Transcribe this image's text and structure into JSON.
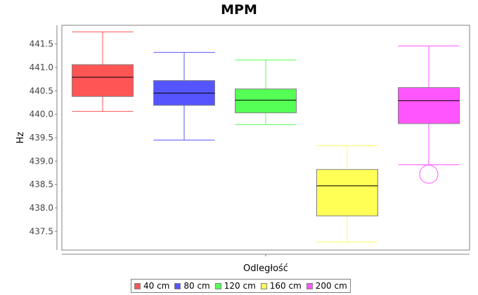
{
  "chart_data": {
    "type": "boxplot",
    "title": "MPM",
    "xlabel": "Odległość",
    "ylabel": "Hz",
    "ylim": [
      437.1,
      441.9
    ],
    "yticks": [
      "437.5",
      "438.0",
      "438.5",
      "439.0",
      "439.5",
      "440.0",
      "440.5",
      "441.0",
      "441.5"
    ],
    "grid": false,
    "legend_position": "bottom",
    "series": [
      {
        "name": "40 cm",
        "color": "#ff5555",
        "whisker_low": 440.06,
        "q1": 440.38,
        "median": 440.79,
        "q3": 441.06,
        "whisker_high": 441.76,
        "outliers": []
      },
      {
        "name": "80 cm",
        "color": "#5555ff",
        "whisker_low": 439.45,
        "q1": 440.19,
        "median": 440.45,
        "q3": 440.72,
        "whisker_high": 441.32,
        "outliers": []
      },
      {
        "name": "120 cm",
        "color": "#55ff55",
        "whisker_low": 439.78,
        "q1": 440.03,
        "median": 440.3,
        "q3": 440.54,
        "whisker_high": 441.16,
        "outliers": []
      },
      {
        "name": "160 cm",
        "color": "#ffff55",
        "whisker_low": 437.27,
        "q1": 437.83,
        "median": 438.47,
        "q3": 438.82,
        "whisker_high": 439.33,
        "outliers": []
      },
      {
        "name": "200 cm",
        "color": "#ff55ff",
        "whisker_low": 438.92,
        "q1": 439.8,
        "median": 440.29,
        "q3": 440.57,
        "whisker_high": 441.46,
        "outliers": [
          438.72
        ]
      }
    ]
  }
}
